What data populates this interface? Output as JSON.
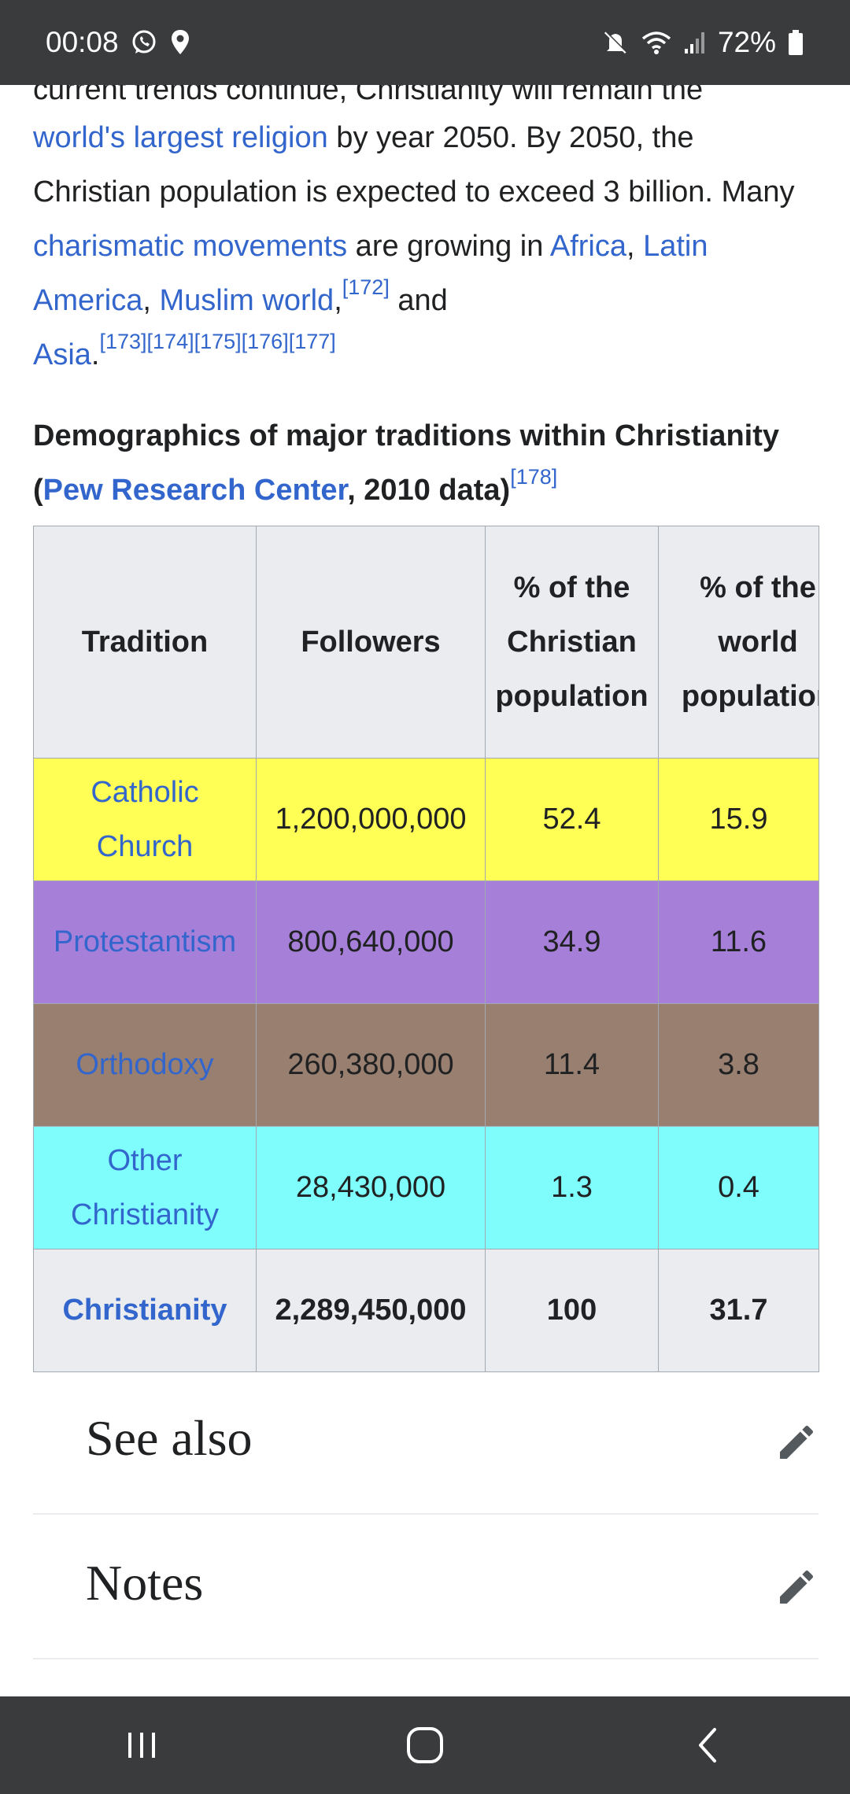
{
  "status_bar": {
    "time": "00:08",
    "battery": "72%",
    "icons": [
      "whatsapp-icon",
      "location-icon",
      "mute-icon",
      "wifi-icon",
      "signal-icon",
      "battery-icon"
    ]
  },
  "article": {
    "cut_line": "current trends continue, Christianity will remain the",
    "para": {
      "link1": "world's largest religion",
      "t1": " by year 2050. By 2050, the Christian population is expected to exceed 3 billion. Many ",
      "link2": "charismatic movements",
      "t2": " are growing in ",
      "link3": "Africa",
      "t3": ", ",
      "link4": "Latin America",
      "t4": ", ",
      "link5": "Muslim world",
      "t5": ",",
      "ref1": "[172]",
      "t6": " and ",
      "link6": "Asia",
      "t7": ".",
      "ref2": "[173][174][175][176][177]"
    },
    "caption": {
      "t1": "Demographics of major traditions within Christianity (",
      "link": "Pew Research Center",
      "t2": ", 2010 data)",
      "ref": "[178]"
    }
  },
  "table": {
    "headers": [
      "Tradition",
      "Followers",
      "% of the Christian population",
      "% of the world population"
    ],
    "rows": [
      {
        "tradition": "Catholic Church",
        "followers": "1,200,000,000",
        "pct_christian": "52.4",
        "pct_world": "15.9",
        "color": "#ffff55"
      },
      {
        "tradition": "Protestantism",
        "followers": "800,640,000",
        "pct_christian": "34.9",
        "pct_world": "11.6",
        "color": "#a67fd9"
      },
      {
        "tradition": "Orthodoxy",
        "followers": "260,380,000",
        "pct_christian": "11.4",
        "pct_world": "3.8",
        "color": "#987f70"
      },
      {
        "tradition": "Other Christianity",
        "followers": "28,430,000",
        "pct_christian": "1.3",
        "pct_world": "0.4",
        "color": "#7ffcfc"
      }
    ],
    "total": {
      "tradition": "Christianity",
      "followers": "2,289,450,000",
      "pct_christian": "100",
      "pct_world": "31.7"
    }
  },
  "sections": [
    {
      "title": "See also"
    },
    {
      "title": "Notes"
    }
  ],
  "nav_bar": {
    "icons": [
      "recent-apps-icon",
      "home-icon",
      "back-icon"
    ]
  }
}
